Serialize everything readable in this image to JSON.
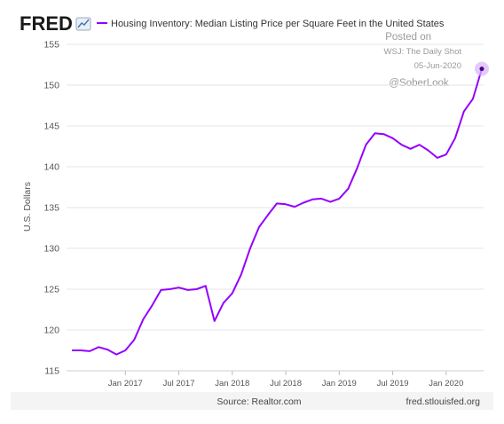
{
  "header": {
    "logo_text": "FRED",
    "legend_label": "Housing Inventory: Median Listing Price per Square Feet in the United States"
  },
  "watermark": {
    "line1": "Posted on",
    "line2": "WSJ: The Daily Shot",
    "line3": "05-Jun-2020",
    "line4": "@SoberLook"
  },
  "footer": {
    "source": "Source: Realtor.com",
    "site": "fred.stlouisfed.org"
  },
  "colors": {
    "series": "#9400ff",
    "grid": "#e6e6e6",
    "axis_text": "#555555",
    "highlight": "#d9b3ff",
    "footer_bg": "#f4f4f4"
  },
  "chart_data": {
    "type": "line",
    "title": "Housing Inventory: Median Listing Price per Square Feet in the United States",
    "ylabel": "U.S. Dollars",
    "xlabel": "",
    "ylim": [
      115,
      155
    ],
    "yticks": [
      115,
      120,
      125,
      130,
      135,
      140,
      145,
      150,
      155
    ],
    "xticks": [
      "Jan 2017",
      "Jul 2017",
      "Jan 2018",
      "Jul 2018",
      "Jan 2019",
      "Jul 2019",
      "Jan 2020"
    ],
    "grid": true,
    "legend_position": "top",
    "series": [
      {
        "name": "Housing Inventory: Median Listing Price per Square Feet in the United States",
        "x": [
          "2016-07",
          "2016-08",
          "2016-09",
          "2016-10",
          "2016-11",
          "2016-12",
          "2017-01",
          "2017-02",
          "2017-03",
          "2017-04",
          "2017-05",
          "2017-06",
          "2017-07",
          "2017-08",
          "2017-09",
          "2017-10",
          "2017-11",
          "2017-12",
          "2018-01",
          "2018-02",
          "2018-03",
          "2018-04",
          "2018-05",
          "2018-06",
          "2018-07",
          "2018-08",
          "2018-09",
          "2018-10",
          "2018-11",
          "2018-12",
          "2019-01",
          "2019-02",
          "2019-03",
          "2019-04",
          "2019-05",
          "2019-06",
          "2019-07",
          "2019-08",
          "2019-09",
          "2019-10",
          "2019-11",
          "2019-12",
          "2020-01",
          "2020-02",
          "2020-03",
          "2020-04",
          "2020-05"
        ],
        "values": [
          117.5,
          117.5,
          117.4,
          117.9,
          117.6,
          117.0,
          117.5,
          118.8,
          121.3,
          123.0,
          124.9,
          125.0,
          125.2,
          124.9,
          125.0,
          125.4,
          121.1,
          123.3,
          124.5,
          126.8,
          130.0,
          132.6,
          134.1,
          135.5,
          135.4,
          135.1,
          135.6,
          136.0,
          136.1,
          135.7,
          136.1,
          137.3,
          139.8,
          142.7,
          144.1,
          144.0,
          143.5,
          142.7,
          142.2,
          142.7,
          142.0,
          141.1,
          141.5,
          143.5,
          146.8,
          148.3,
          152.0
        ]
      }
    ]
  }
}
